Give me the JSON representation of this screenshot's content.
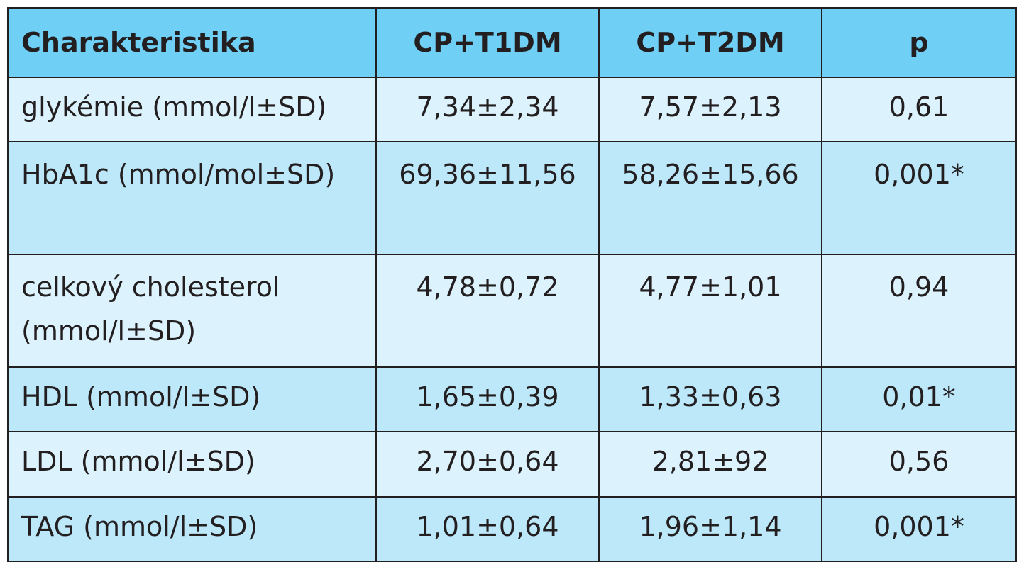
{
  "table": {
    "headers": [
      "Charakteristika",
      "CP+T1DM",
      "CP+T2DM",
      "p"
    ],
    "rows": [
      {
        "label": "glykémie (mmol/l±SD)",
        "t1dm": "7,34±2,34",
        "t2dm": "7,57±2,13",
        "p": "0,61"
      },
      {
        "label": "HbA1c (mmol/mol±SD)",
        "t1dm": "69,36±11,56",
        "t2dm": "58,26±15,66",
        "p": "0,001*"
      },
      {
        "label": "celkový cholesterol (mmol/l±SD)",
        "t1dm": "4,78±0,72",
        "t2dm": "4,77±1,01",
        "p": "0,94"
      },
      {
        "label": "HDL (mmol/l±SD)",
        "t1dm": "1,65±0,39",
        "t2dm": "1,33±0,63",
        "p": "0,01*"
      },
      {
        "label": "LDL (mmol/l±SD)",
        "t1dm": "2,70±0,64",
        "t2dm": "2,81±92",
        "p": "0,56"
      },
      {
        "label": "TAG (mmol/l±SD)",
        "t1dm": "1,01±0,64",
        "t2dm": "1,96±1,14",
        "p": "0,001*"
      }
    ]
  },
  "colors": {
    "header_bg": "#6fcff5",
    "row_light": "#dcf3fd",
    "row_dark": "#bde8fa",
    "border": "#231f20"
  }
}
